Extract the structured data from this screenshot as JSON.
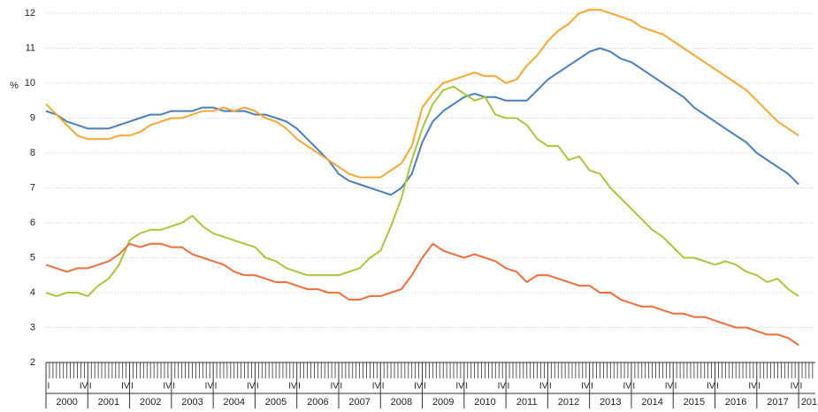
{
  "chart_data": {
    "type": "line",
    "ylabel": "%",
    "x": [
      2000,
      2000.25,
      2000.5,
      2000.75,
      2001,
      2001.25,
      2001.5,
      2001.75,
      2002,
      2002.25,
      2002.5,
      2002.75,
      2003,
      2003.25,
      2003.5,
      2003.75,
      2004,
      2004.25,
      2004.5,
      2004.75,
      2005,
      2005.25,
      2005.5,
      2005.75,
      2006,
      2006.25,
      2006.5,
      2006.75,
      2007,
      2007.25,
      2007.5,
      2007.75,
      2008,
      2008.25,
      2008.5,
      2008.75,
      2009,
      2009.25,
      2009.5,
      2009.75,
      2010,
      2010.25,
      2010.5,
      2010.75,
      2011,
      2011.25,
      2011.5,
      2011.75,
      2012,
      2012.25,
      2012.5,
      2012.75,
      2013,
      2013.25,
      2013.5,
      2013.75,
      2014,
      2014.25,
      2014.5,
      2014.75,
      2015,
      2015.25,
      2015.5,
      2015.75,
      2016,
      2016.25,
      2016.5,
      2016.75,
      2017,
      2017.25,
      2017.5,
      2017.75,
      2018
    ],
    "xlim": [
      2000,
      2018.4
    ],
    "year_labels": [
      "2000",
      "2001",
      "2002",
      "2003",
      "2004",
      "2005",
      "2006",
      "2007",
      "2008",
      "2009",
      "2010",
      "2011",
      "2012",
      "2013",
      "2014",
      "2015",
      "2016",
      "2017",
      "201"
    ],
    "quarter_labels": [
      "I",
      "IV"
    ],
    "ylim": [
      2,
      12
    ],
    "yticks": [
      2,
      3,
      4,
      5,
      6,
      7,
      8,
      9,
      10,
      11,
      12
    ],
    "grid": true,
    "series": [
      {
        "color": "#4a7ebb",
        "values": [
          9.2,
          9.1,
          8.9,
          8.8,
          8.7,
          8.7,
          8.7,
          8.8,
          8.9,
          9.0,
          9.1,
          9.1,
          9.2,
          9.2,
          9.2,
          9.3,
          9.3,
          9.2,
          9.2,
          9.2,
          9.1,
          9.1,
          9.0,
          8.9,
          8.7,
          8.4,
          8.1,
          7.8,
          7.4,
          7.2,
          7.1,
          7.0,
          6.9,
          6.8,
          7.0,
          7.4,
          8.3,
          8.9,
          9.2,
          9.4,
          9.6,
          9.7,
          9.6,
          9.6,
          9.5,
          9.5,
          9.5,
          9.8,
          10.1,
          10.3,
          10.5,
          10.7,
          10.9,
          11.0,
          10.9,
          10.7,
          10.6,
          10.4,
          10.2,
          10.0,
          9.8,
          9.6,
          9.3,
          9.1,
          8.9,
          8.7,
          8.5,
          8.3,
          8.0,
          7.8,
          7.6,
          7.4,
          7.1
        ]
      },
      {
        "color": "#f5a835",
        "values": [
          9.4,
          9.1,
          8.8,
          8.5,
          8.4,
          8.4,
          8.4,
          8.5,
          8.5,
          8.6,
          8.8,
          8.9,
          9.0,
          9.0,
          9.1,
          9.2,
          9.2,
          9.3,
          9.2,
          9.3,
          9.2,
          9.0,
          8.9,
          8.7,
          8.4,
          8.2,
          8.0,
          7.8,
          7.6,
          7.4,
          7.3,
          7.3,
          7.3,
          7.5,
          7.7,
          8.2,
          9.3,
          9.7,
          10.0,
          10.1,
          10.2,
          10.3,
          10.2,
          10.2,
          10.0,
          10.1,
          10.5,
          10.8,
          11.2,
          11.5,
          11.7,
          12.0,
          12.1,
          12.1,
          12.0,
          11.9,
          11.8,
          11.6,
          11.5,
          11.4,
          11.2,
          11.0,
          10.8,
          10.6,
          10.4,
          10.2,
          10.0,
          9.8,
          9.5,
          9.2,
          8.9,
          8.7,
          8.5
        ]
      },
      {
        "color": "#a9c63c",
        "values": [
          4.0,
          3.9,
          4.0,
          4.0,
          3.9,
          4.2,
          4.4,
          4.8,
          5.5,
          5.7,
          5.8,
          5.8,
          5.9,
          6.0,
          6.2,
          5.9,
          5.7,
          5.6,
          5.5,
          5.4,
          5.3,
          5.0,
          4.9,
          4.7,
          4.6,
          4.5,
          4.5,
          4.5,
          4.5,
          4.6,
          4.7,
          5.0,
          5.2,
          5.9,
          6.7,
          7.8,
          8.7,
          9.4,
          9.8,
          9.9,
          9.7,
          9.5,
          9.6,
          9.1,
          9.0,
          9.0,
          8.8,
          8.4,
          8.2,
          8.2,
          7.8,
          7.9,
          7.5,
          7.4,
          7.0,
          6.7,
          6.4,
          6.1,
          5.8,
          5.6,
          5.3,
          5.0,
          5.0,
          4.9,
          4.8,
          4.9,
          4.8,
          4.6,
          4.5,
          4.3,
          4.4,
          4.1,
          3.9
        ]
      },
      {
        "color": "#ee6d3b",
        "values": [
          4.8,
          4.7,
          4.6,
          4.7,
          4.7,
          4.8,
          4.9,
          5.1,
          5.4,
          5.3,
          5.4,
          5.4,
          5.3,
          5.3,
          5.1,
          5.0,
          4.9,
          4.8,
          4.6,
          4.5,
          4.5,
          4.4,
          4.3,
          4.3,
          4.2,
          4.1,
          4.1,
          4.0,
          4.0,
          3.8,
          3.8,
          3.9,
          3.9,
          4.0,
          4.1,
          4.5,
          5.0,
          5.4,
          5.2,
          5.1,
          5.0,
          5.1,
          5.0,
          4.9,
          4.7,
          4.6,
          4.3,
          4.5,
          4.5,
          4.4,
          4.3,
          4.2,
          4.2,
          4.0,
          4.0,
          3.8,
          3.7,
          3.6,
          3.6,
          3.5,
          3.4,
          3.4,
          3.3,
          3.3,
          3.2,
          3.1,
          3.0,
          3.0,
          2.9,
          2.8,
          2.8,
          2.7,
          2.5
        ]
      }
    ]
  }
}
